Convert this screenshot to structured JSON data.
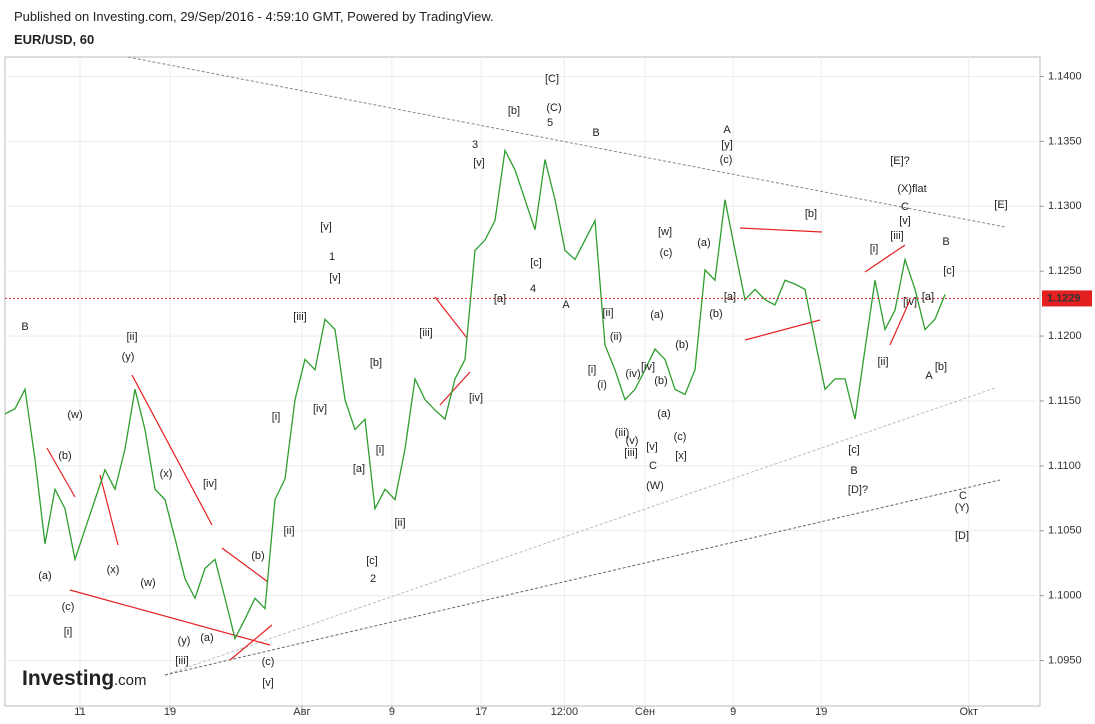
{
  "header": "Published on Investing.com, 29/Sep/2016 - 4:59:10 GMT, Powered by TradingView.",
  "logo": {
    "name": "Investing",
    "suffix": ".com"
  },
  "chart_data": {
    "type": "line",
    "title": "EUR/USD, 60",
    "x": [
      0,
      16,
      32,
      48,
      64,
      80,
      96,
      112,
      128,
      144,
      160,
      176,
      192,
      208,
      224,
      240,
      256,
      272,
      288,
      304,
      320,
      336,
      352,
      368,
      384,
      400,
      416,
      432,
      448,
      464,
      480,
      496,
      512,
      528,
      544,
      560,
      576,
      592,
      608,
      624,
      640,
      656,
      672,
      688,
      704,
      720,
      736,
      752,
      768,
      784,
      800,
      816,
      832,
      848,
      864,
      880,
      896,
      912,
      928,
      944,
      960,
      976,
      992,
      1008,
      1024,
      1040,
      1056,
      1072,
      1088,
      1104,
      1120,
      1136,
      1152,
      1168,
      1184,
      1200,
      1216,
      1232,
      1248,
      1264,
      1280,
      1296,
      1312,
      1328,
      1344,
      1360,
      1376,
      1392,
      1408,
      1424,
      1440,
      1456,
      1472,
      1488,
      1504
    ],
    "series": [
      {
        "name": "EUR/USD",
        "color": "#2e9e2e",
        "values": [
          1.114,
          1.1144,
          1.1159,
          1.1105,
          1.104,
          1.1082,
          1.1067,
          1.1028,
          1.1051,
          1.1074,
          1.1097,
          1.1082,
          1.1113,
          1.1159,
          1.1128,
          1.1082,
          1.1074,
          1.1044,
          1.1013,
          1.0998,
          1.1021,
          1.1028,
          1.0998,
          1.0967,
          1.0982,
          1.0998,
          1.099,
          1.1074,
          1.109,
          1.1151,
          1.1182,
          1.1174,
          1.1213,
          1.1205,
          1.1151,
          1.1128,
          1.1136,
          1.1067,
          1.1082,
          1.1074,
          1.1113,
          1.1167,
          1.1151,
          1.1143,
          1.1136,
          1.1167,
          1.1182,
          1.1266,
          1.1274,
          1.1289,
          1.1343,
          1.1328,
          1.1305,
          1.1282,
          1.1336,
          1.1305,
          1.1266,
          1.1259,
          1.1274,
          1.1289,
          1.1193,
          1.1174,
          1.1151,
          1.1159,
          1.1174,
          1.119,
          1.1182,
          1.1159,
          1.1155,
          1.1174,
          1.1251,
          1.1243,
          1.1305,
          1.1266,
          1.1228,
          1.1236,
          1.1228,
          1.1224,
          1.1243,
          1.124,
          1.1236,
          1.1197,
          1.1159,
          1.1167,
          1.1167,
          1.1136,
          1.119,
          1.1243,
          1.1205,
          1.122,
          1.1259,
          1.1236,
          1.1205,
          1.1213,
          1.1232
        ]
      }
    ],
    "last_price": 1.1229,
    "last_price_color": "#e52020",
    "xlim": [
      0,
      1656
    ],
    "xticks": [
      {
        "value": 120,
        "label": "11"
      },
      {
        "value": 264,
        "label": "19"
      },
      {
        "value": 475,
        "label": "Авг"
      },
      {
        "value": 619,
        "label": "9"
      },
      {
        "value": 762,
        "label": "17"
      },
      {
        "value": 895,
        "label": "12:00"
      },
      {
        "value": 1024,
        "label": "Сен"
      },
      {
        "value": 1165,
        "label": "9"
      },
      {
        "value": 1306,
        "label": "19"
      },
      {
        "value": 1542,
        "label": "Окт"
      }
    ],
    "ylim": [
      1.0915,
      1.1415
    ],
    "yticks": [
      {
        "value": 1.095,
        "label": "1.0950"
      },
      {
        "value": 1.1,
        "label": "1.1000"
      },
      {
        "value": 1.105,
        "label": "1.1050"
      },
      {
        "value": 1.11,
        "label": "1.1100"
      },
      {
        "value": 1.115,
        "label": "1.1150"
      },
      {
        "value": 1.12,
        "label": "1.1200"
      },
      {
        "value": 1.125,
        "label": "1.1250"
      },
      {
        "value": 1.13,
        "label": "1.1300"
      },
      {
        "value": 1.135,
        "label": "1.1350"
      },
      {
        "value": 1.14,
        "label": "1.1400"
      }
    ],
    "grid": true,
    "annotations": [
      "B",
      "[ii]",
      "(y)",
      "(w)",
      "(b)",
      "(a)",
      "(c)",
      "[i]",
      "(x)",
      "(w)",
      "(x)",
      "[iv]",
      "(b)",
      "(y)",
      "(a)",
      "[iii]",
      "(c)",
      "[v]",
      "[v]",
      "1",
      "[v]",
      "[iii]",
      "[iv]",
      "[i]",
      "[ii]",
      "[b]",
      "[i]",
      "[a]",
      "[ii]",
      "[c]",
      "2",
      "[iii]",
      "[iv]",
      "3",
      "[v]",
      "[b]",
      "[a]",
      "[c]",
      "4",
      "[C]",
      "(C)",
      "5",
      "B",
      "A",
      "[ii]",
      "(ii)",
      "[i]",
      "(i)",
      "(iv)",
      "(iii)",
      "(v)",
      "[iii]",
      "[iv]",
      "[v]",
      "C",
      "(W)",
      "(a)",
      "(b)",
      "(a)",
      "[w]",
      "(c)",
      "(b)",
      "(c)",
      "[x]",
      "(a)",
      "(b)",
      "[a]",
      "A",
      "[y]",
      "(c)",
      "[b]",
      "[c]",
      "B",
      "[D]?",
      "[E]?",
      "(X)flat",
      "C",
      "[v]",
      "[iii]",
      "[i]",
      "[iv]",
      "[ii]",
      "[a]",
      "B",
      "[c]",
      "[b]",
      "A",
      "[E]",
      "C",
      "(Y)",
      "[D]"
    ]
  }
}
